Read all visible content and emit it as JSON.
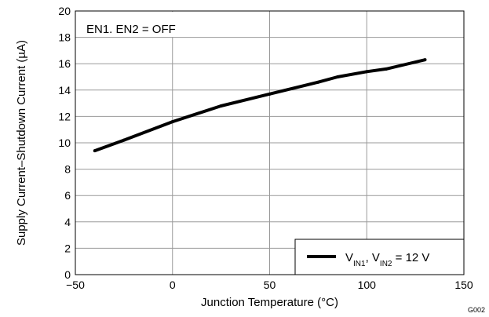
{
  "chart_data": {
    "type": "line",
    "xlabel": "Junction Temperature (°C)",
    "ylabel": "Supply Current–Shutdown Current (µA)",
    "xlim": [
      -50,
      150
    ],
    "ylim": [
      0,
      20
    ],
    "x_ticks": [
      -50,
      0,
      50,
      100,
      150
    ],
    "x_tick_labels": [
      "−50",
      "0",
      "50",
      "100",
      "150"
    ],
    "y_ticks": [
      0,
      2,
      4,
      6,
      8,
      10,
      12,
      14,
      16,
      18,
      20
    ],
    "y_tick_labels": [
      "0",
      "2",
      "4",
      "6",
      "8",
      "10",
      "12",
      "14",
      "16",
      "18",
      "20"
    ],
    "grid": true,
    "annotation": "EN1. EN2 = OFF",
    "figure_code": "G002",
    "legend_position": "bottom-right",
    "series": [
      {
        "name": "V_IN1, V_IN2 = 12 V",
        "legend_parts": {
          "v": "V",
          "sub1": "IN1",
          "mid": ", V",
          "sub2": "IN2",
          "tail": " =  12 V"
        },
        "color": "#000000",
        "x": [
          -40,
          -25,
          0,
          25,
          50,
          75,
          85,
          100,
          110,
          130
        ],
        "y": [
          9.4,
          10.2,
          11.6,
          12.8,
          13.7,
          14.6,
          15.0,
          15.4,
          15.6,
          16.3
        ]
      }
    ]
  }
}
